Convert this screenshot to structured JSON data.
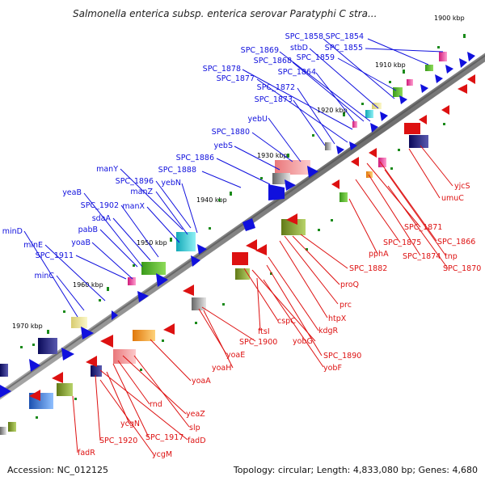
{
  "title": "Salmonella enterica subsp. enterica serovar Paratyphi C stra...",
  "footer": {
    "accession": "Accession: NC_012125",
    "topology": "Topology: circular; Length: 4,833,080 bp; Genes: 4,680"
  },
  "colors": {
    "forward": "#1010dd",
    "reverse": "#dd1111",
    "backbone": "#808080",
    "tick": "#1a8a1a"
  },
  "kbp_labels": [
    "1900 kbp",
    "1910 kbp",
    "1920 kbp",
    "1930 kbp",
    "1940 kbp",
    "1950 kbp",
    "1960 kbp",
    "1970 kbp"
  ],
  "forward_genes": [
    "SPC_1858",
    "SPC_1854",
    "stbD",
    "SPC_1855",
    "SPC_1869",
    "SPC_1859",
    "SPC_1868",
    "SPC_1864",
    "SPC_1878",
    "SPC_1877",
    "SPC_1872",
    "SPC_1873",
    "yebU",
    "SPC_1880",
    "yebS",
    "SPC_1886",
    "manY",
    "SPC_1888",
    "SPC_1896",
    "manZ",
    "yebN",
    "yeaB",
    "SPC_1902",
    "sdaA",
    "manX",
    "pabB",
    "minD",
    "yoaB",
    "minE",
    "SPC_1911",
    "minC"
  ],
  "reverse_genes": [
    "yjcS",
    "umuC",
    "SPC_1871",
    "SPC_1866",
    "SPC_1875",
    "pphA",
    "SPC_1874",
    "tnp",
    "SPC_1870",
    "SPC_1882",
    "proQ",
    "prc",
    "htpX",
    "kdgR",
    "cspC",
    "ftsI",
    "yobG",
    "SPC_1890",
    "SPC_1900",
    "yobF",
    "yoaH",
    "yoaE",
    "yoaA",
    "yeaZ",
    "rnd",
    "slp",
    "SPC_1917",
    "fadD",
    "ycgN",
    "SPC_1920",
    "fadR",
    "ycgM"
  ]
}
